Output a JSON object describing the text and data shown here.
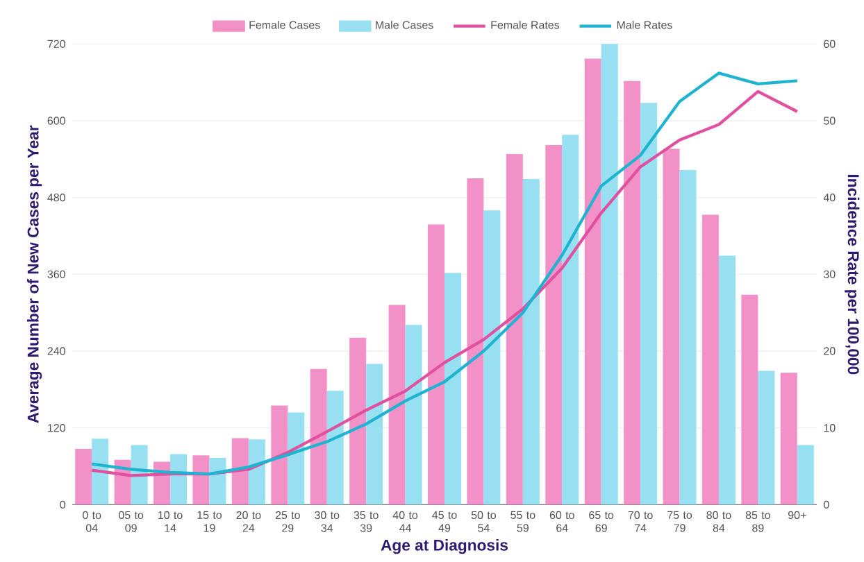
{
  "chart_data": {
    "type": "bar",
    "xlabel": "Age at Diagnosis",
    "ylabel": "Average Number of New Cases per Year",
    "y2label": "Incidence Rate per 100,000",
    "categories": [
      "0 to 04",
      "05 to 09",
      "10 to 14",
      "15 to 19",
      "20 to 24",
      "25 to 29",
      "30 to 34",
      "35 to 39",
      "40 to 44",
      "45 to 49",
      "50 to 54",
      "55 to 59",
      "60 to 64",
      "65 to 69",
      "70 to 74",
      "75 to 79",
      "80 to 84",
      "85 to 89",
      "90+"
    ],
    "series": [
      {
        "name": "Female Cases",
        "color": "#f291c8",
        "values": [
          87,
          70,
          67,
          77,
          104,
          155,
          212,
          261,
          312,
          438,
          510,
          548,
          562,
          697,
          662,
          556,
          453,
          328,
          206
        ]
      },
      {
        "name": "Male Cases",
        "color": "#96e0f2",
        "values": [
          103,
          93,
          79,
          73,
          102,
          144,
          178,
          220,
          281,
          362,
          460,
          509,
          578,
          720,
          628,
          523,
          389,
          209,
          93
        ]
      },
      {
        "name": "Female Rates",
        "type": "line",
        "axis": "y2",
        "color": "#e0509f",
        "values": [
          4.5,
          3.8,
          4.0,
          4.0,
          4.6,
          6.8,
          9.5,
          12.3,
          14.8,
          18.5,
          21.5,
          25.5,
          30.8,
          38,
          44,
          47.5,
          49.5,
          53.8,
          51.2
        ]
      },
      {
        "name": "Male Rates",
        "type": "line",
        "axis": "y2",
        "color": "#1fb3d0",
        "values": [
          5.3,
          4.6,
          4.2,
          4.0,
          4.9,
          6.5,
          8.2,
          10.5,
          13.5,
          16,
          20,
          25,
          32.5,
          41.5,
          45.5,
          52.5,
          56.2,
          54.8,
          55.2
        ]
      }
    ],
    "ylim": [
      0,
      720
    ],
    "yticks": [
      0,
      120,
      240,
      360,
      480,
      600,
      720
    ],
    "y2lim": [
      0,
      60
    ],
    "y2ticks": [
      0,
      10,
      20,
      30,
      40,
      50,
      60
    ],
    "grid": "y",
    "legend": "top",
    "marker": "none",
    "line_style": "solid"
  }
}
